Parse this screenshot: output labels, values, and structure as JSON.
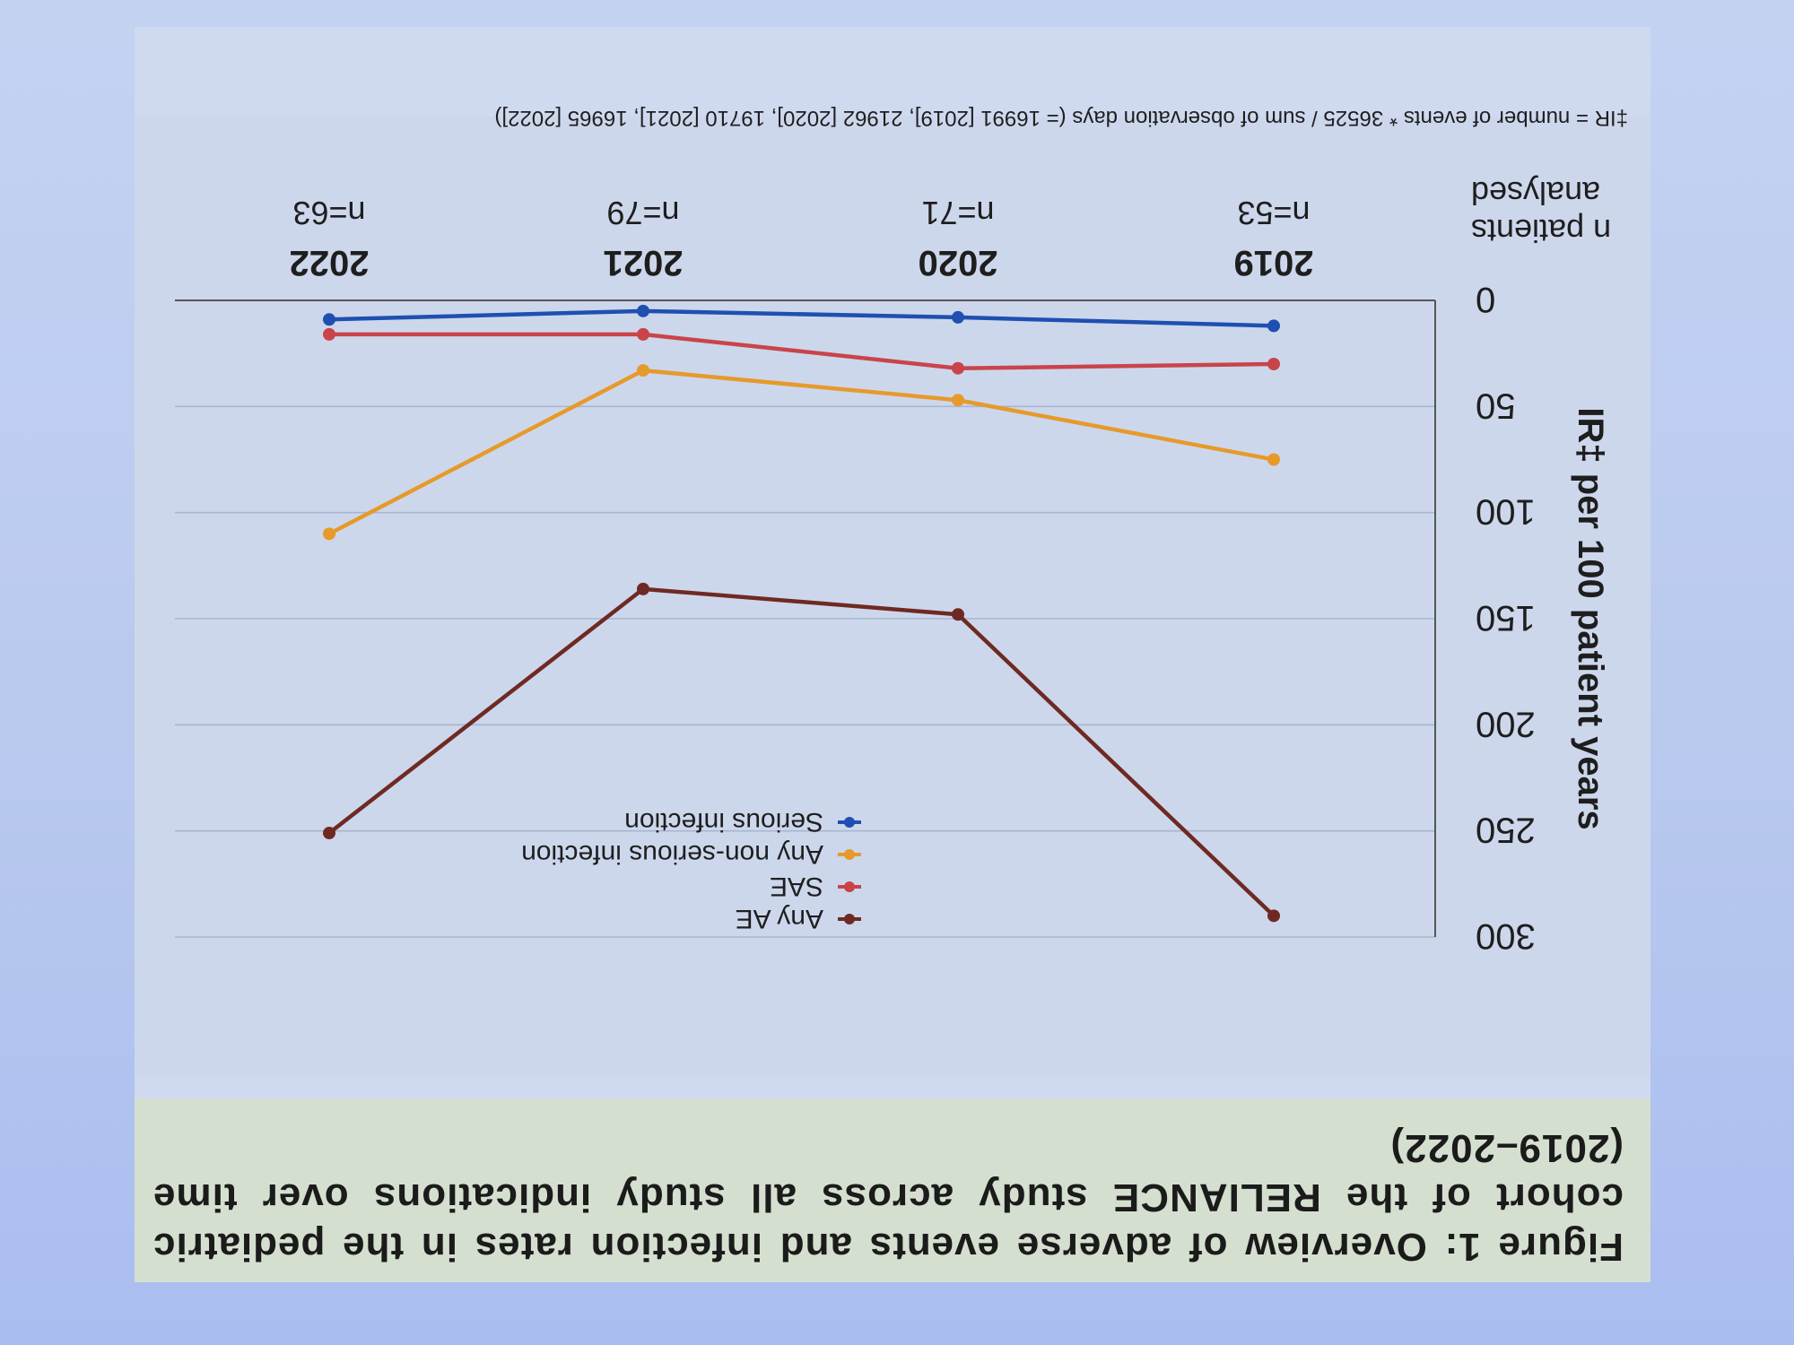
{
  "figure": {
    "caption": "Figure 1: Overview of adverse events and infection rates in the pediatric cohort of the RELIANCE study across all study indications over time (2019–2022)",
    "footnote": "‡IR = number of events * 36525 / sum of observation days (= 16991 [2019], 21962 [2020], 19710 [2021], 16965 [2022])"
  },
  "chart_data": {
    "type": "line",
    "ylabel": "IR‡ per 100 patient years",
    "ylim": [
      0,
      300
    ],
    "yticks": [
      0,
      50,
      100,
      150,
      200,
      250,
      300
    ],
    "grid": true,
    "legend_position": "top-right",
    "categories": [
      "2019",
      "2020",
      "2021",
      "2022"
    ],
    "n_label": "n patients analysed",
    "n_values": [
      "n=53",
      "n=71",
      "n=79",
      "n=63"
    ],
    "series": [
      {
        "name": "Any AE",
        "color": "#6e2a22",
        "values": [
          290,
          148,
          136,
          251
        ]
      },
      {
        "name": "SAE",
        "color": "#c9444a",
        "values": [
          30,
          32,
          16,
          16
        ]
      },
      {
        "name": "Any non-serious infection",
        "color": "#e69a2a",
        "values": [
          75,
          47,
          33,
          110
        ]
      },
      {
        "name": "Serious infection",
        "color": "#1f4fb0",
        "values": [
          12,
          8,
          5,
          9
        ]
      }
    ]
  }
}
